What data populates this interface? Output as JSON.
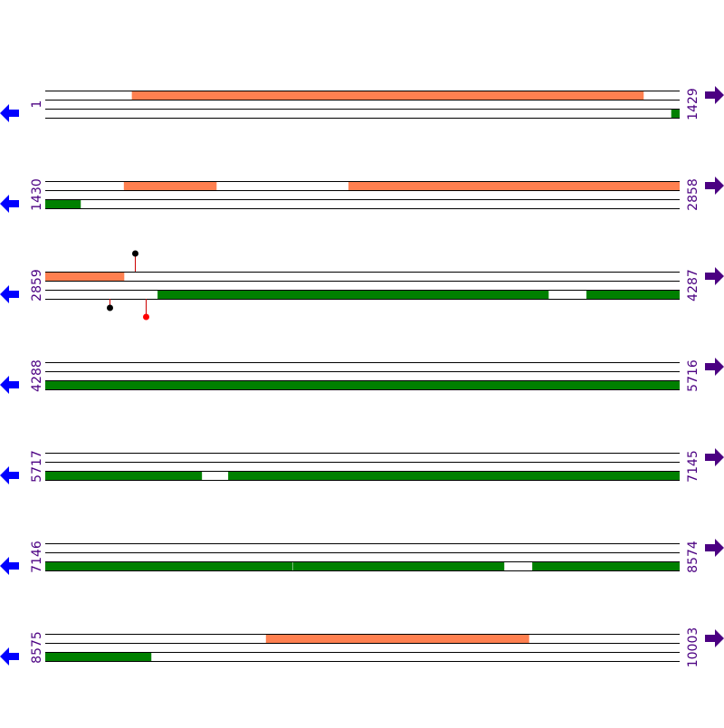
{
  "colors": {
    "top_feature": "#ff8050",
    "bottom_feature": "#008000",
    "line": "#000000",
    "label": "#4b0082",
    "left_arrow": "#0000ff",
    "right_arrow": "#4b0082",
    "pin_stem": "#cc0000"
  },
  "icons": {
    "left": "arrow-left-icon",
    "right": "arrow-right-icon"
  },
  "rows": [
    {
      "start": "1",
      "end": "1429",
      "s": 1,
      "e": 1429,
      "top": [
        [
          196,
          1348
        ]
      ],
      "bottom": [
        [
          1411,
          1429
        ]
      ],
      "pins": []
    },
    {
      "start": "1430",
      "end": "2858",
      "s": 1430,
      "e": 2858,
      "top": [
        [
          1607,
          1815
        ],
        [
          2113,
          2858
        ]
      ],
      "bottom": [
        [
          1430,
          1509
        ]
      ],
      "pins": []
    },
    {
      "start": "2859",
      "end": "4287",
      "s": 2859,
      "e": 4287,
      "top": [
        [
          2859,
          3036
        ]
      ],
      "bottom": [
        [
          3112,
          3992
        ],
        [
          4078,
          4287
        ]
      ],
      "pins": [
        {
          "pos": 3061,
          "strand": "top",
          "level": 2,
          "color": "#000000"
        },
        {
          "pos": 3004,
          "strand": "bottom",
          "level": 1,
          "color": "#000000"
        },
        {
          "pos": 3085,
          "strand": "bottom",
          "level": 2,
          "color": "#ff0000"
        }
      ]
    },
    {
      "start": "4288",
      "end": "5716",
      "s": 4288,
      "e": 5716,
      "top": [],
      "bottom": [
        [
          4288,
          5716
        ]
      ],
      "pins": []
    },
    {
      "start": "5717",
      "end": "7145",
      "s": 5717,
      "e": 7145,
      "top": [],
      "bottom": [
        [
          5717,
          6069
        ],
        [
          6129,
          7145
        ]
      ],
      "pins": []
    },
    {
      "start": "7146",
      "end": "8574",
      "s": 7146,
      "e": 8574,
      "top": [],
      "bottom": [
        [
          7146,
          7702
        ],
        [
          7704,
          8179
        ],
        [
          8243,
          8574
        ]
      ],
      "pins": []
    },
    {
      "start": "8575",
      "end": "10003",
      "s": 8575,
      "e": 10003,
      "top": [
        [
          9072,
          9664
        ]
      ],
      "bottom": [
        [
          8575,
          8813
        ]
      ],
      "pins": []
    }
  ]
}
